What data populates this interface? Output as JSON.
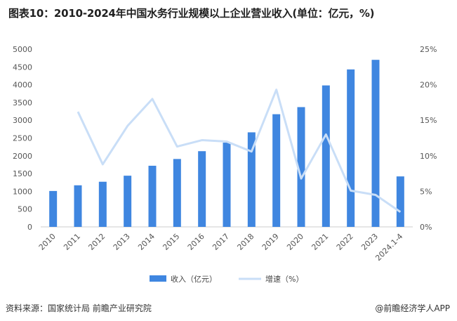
{
  "title": "图表10：2010-2024年中国水务行业规模以上企业营业收入(单位：亿元，%)",
  "source": "资料来源：国家统计局 前瞻产业研究院",
  "brand": "@前瞻经济学人APP",
  "colors": {
    "bar": "#3f86e0",
    "line": "#c9def7",
    "axis": "#cccccc"
  },
  "chart_data": {
    "type": "bar",
    "categories": [
      "2010",
      "2011",
      "2012",
      "2013",
      "2014",
      "2015",
      "2016",
      "2017",
      "2018",
      "2019",
      "2020",
      "2021",
      "2022",
      "2023",
      "2024.1-4"
    ],
    "series": [
      {
        "name": "收入（亿元）",
        "type": "bar",
        "axis": "left",
        "values": [
          1010,
          1170,
          1270,
          1440,
          1720,
          1910,
          2130,
          2370,
          2660,
          3170,
          3370,
          3980,
          4430,
          4700,
          1420
        ]
      },
      {
        "name": "增速（%）",
        "type": "line",
        "axis": "right",
        "values": [
          null,
          16.2,
          8.8,
          14.2,
          18.0,
          11.3,
          12.2,
          12.0,
          10.6,
          19.3,
          6.8,
          13.0,
          5.1,
          4.5,
          2.1
        ]
      }
    ],
    "ylim_left": [
      0,
      5000
    ],
    "yticks_left": [
      "0",
      "500",
      "1000",
      "1500",
      "2000",
      "2500",
      "3000",
      "3500",
      "4000",
      "4500",
      "5000"
    ],
    "ylim_right": [
      0,
      25
    ],
    "yticks_right": [
      "0%",
      "5%",
      "10%",
      "15%",
      "20%",
      "25%"
    ],
    "legend": "bottom",
    "grid": false
  }
}
